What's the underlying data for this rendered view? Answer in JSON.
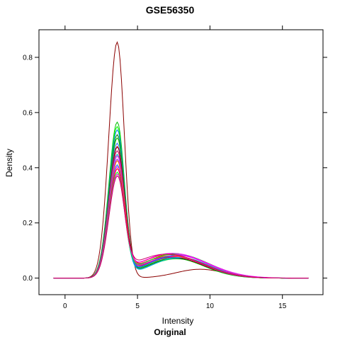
{
  "chart_data": {
    "type": "line",
    "title": "GSE56350",
    "xlabel": "Intensity",
    "ylabel": "Density",
    "sublabel": "Original",
    "xlim": [
      -1.8,
      17.8
    ],
    "ylim": [
      -0.06,
      0.9
    ],
    "xticks": [
      0,
      5,
      10,
      15
    ],
    "yticks": [
      0.0,
      0.2,
      0.4,
      0.6,
      0.8
    ],
    "ytick_labels": [
      "0.0",
      "0.2",
      "0.4",
      "0.6",
      "0.8"
    ],
    "grid": false,
    "legend": "none",
    "x_range": [
      -0.8,
      16.8
    ],
    "series_peak_x": 3.6,
    "series_peak_width": 0.55,
    "series_colors": [
      "#0080ff",
      "#ff00ff",
      "#008000",
      "#ff0000",
      "#00c000",
      "#8b0000",
      "#ff6600",
      "#00bfbf",
      "#9933cc",
      "#00ff00",
      "#cc0066",
      "#3366ff"
    ],
    "series": [
      {
        "peak": 0.855,
        "tail_center": 9.3,
        "tail_height": 0.032,
        "tail_width": 1.5,
        "color": "#8b0000"
      },
      {
        "peak": 0.56,
        "tail_center": 7.5,
        "tail_height": 0.072,
        "tail_width": 1.8,
        "color": "#00c000"
      },
      {
        "peak": 0.545,
        "tail_center": 7.7,
        "tail_height": 0.07,
        "tail_width": 1.8,
        "color": "#00ff00"
      },
      {
        "peak": 0.53,
        "tail_center": 7.4,
        "tail_height": 0.074,
        "tail_width": 1.9,
        "color": "#0080ff"
      },
      {
        "peak": 0.515,
        "tail_center": 7.6,
        "tail_height": 0.071,
        "tail_width": 1.8,
        "color": "#008000"
      },
      {
        "peak": 0.5,
        "tail_center": 7.3,
        "tail_height": 0.076,
        "tail_width": 1.9,
        "color": "#00c000"
      },
      {
        "peak": 0.485,
        "tail_center": 7.8,
        "tail_height": 0.073,
        "tail_width": 1.8,
        "color": "#3366ff"
      },
      {
        "peak": 0.47,
        "tail_center": 7.5,
        "tail_height": 0.08,
        "tail_width": 1.9,
        "color": "#ff0000"
      },
      {
        "peak": 0.465,
        "tail_center": 7.2,
        "tail_height": 0.078,
        "tail_width": 2.0,
        "color": "#8b0000"
      },
      {
        "peak": 0.455,
        "tail_center": 7.6,
        "tail_height": 0.077,
        "tail_width": 1.9,
        "color": "#cc0066"
      },
      {
        "peak": 0.445,
        "tail_center": 7.9,
        "tail_height": 0.075,
        "tail_width": 1.8,
        "color": "#00bfbf"
      },
      {
        "peak": 0.435,
        "tail_center": 7.4,
        "tail_height": 0.079,
        "tail_width": 1.9,
        "color": "#ff00ff"
      },
      {
        "peak": 0.425,
        "tail_center": 7.7,
        "tail_height": 0.083,
        "tail_width": 1.9,
        "color": "#9933cc"
      },
      {
        "peak": 0.415,
        "tail_center": 7.3,
        "tail_height": 0.081,
        "tail_width": 2.0,
        "color": "#ff6600"
      },
      {
        "peak": 0.405,
        "tail_center": 7.8,
        "tail_height": 0.084,
        "tail_width": 1.9,
        "color": "#0080ff"
      },
      {
        "peak": 0.395,
        "tail_center": 7.5,
        "tail_height": 0.086,
        "tail_width": 2.0,
        "color": "#ff00ff"
      },
      {
        "peak": 0.385,
        "tail_center": 7.2,
        "tail_height": 0.085,
        "tail_width": 2.0,
        "color": "#ff0000"
      },
      {
        "peak": 0.375,
        "tail_center": 7.6,
        "tail_height": 0.088,
        "tail_width": 2.0,
        "color": "#00ff00"
      },
      {
        "peak": 0.365,
        "tail_center": 7.4,
        "tail_height": 0.09,
        "tail_width": 2.1,
        "color": "#ff00ff"
      },
      {
        "peak": 0.355,
        "tail_center": 7.0,
        "tail_height": 0.087,
        "tail_width": 2.1,
        "color": "#cc0066"
      }
    ]
  }
}
